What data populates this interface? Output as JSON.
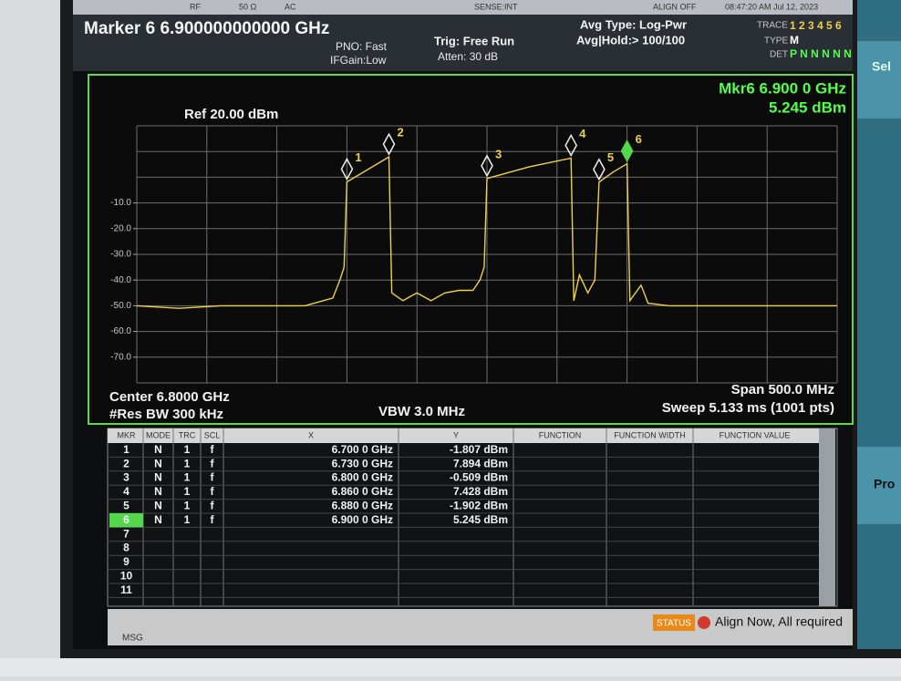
{
  "header": {
    "rf": "RF",
    "impedance": "50 Ω",
    "coupling": "AC",
    "sense": "SENSE:INT",
    "align": "ALIGN OFF",
    "datetime": "08:47:20 AM Jul 12, 2023",
    "marker": "Marker 6 6.900000000000 GHz",
    "pno": "PNO: Fast",
    "ifgain": "IFGain:Low",
    "trig": "Trig: Free Run",
    "atten": "Atten: 30 dB",
    "avg_type": "Avg Type: Log-Pwr",
    "avg_hold": "Avg|Hold:> 100/100",
    "trace_label": "TRACE",
    "trace": "1 2 3 4 5 6",
    "type_label": "TYPE",
    "type": "M",
    "det_label": "DET",
    "det": "P N N N N N"
  },
  "graph": {
    "ref": "Ref 20.00 dBm",
    "mkr_freq": "Mkr6 6.900 0 GHz",
    "mkr_level": "5.245 dBm",
    "center": "Center 6.8000 GHz",
    "rbw": "#Res BW 300 kHz",
    "vbw": "VBW 3.0 MHz",
    "span": "Span 500.0 MHz",
    "sweep": "Sweep  5.133 ms (1001 pts)",
    "xlim": [
      6.55,
      7.05
    ],
    "ylim": [
      -80,
      20
    ],
    "yticks": [
      {
        "value": -10,
        "label": "-10.0"
      },
      {
        "value": -20,
        "label": "-20.0"
      },
      {
        "value": -30,
        "label": "-30.0"
      },
      {
        "value": -40,
        "label": "-40.0"
      },
      {
        "value": -50,
        "label": "-50.0"
      },
      {
        "value": -60,
        "label": "-60.0"
      },
      {
        "value": -70,
        "label": "-70.0"
      }
    ],
    "trace_color": "#f0d04a",
    "trace_x": [
      6.55,
      6.58,
      6.61,
      6.64,
      6.67,
      6.69,
      6.695,
      6.698,
      6.7,
      6.715,
      6.73,
      6.732,
      6.74,
      6.75,
      6.76,
      6.77,
      6.78,
      6.79,
      6.795,
      6.798,
      6.8,
      6.83,
      6.86,
      6.862,
      6.866,
      6.872,
      6.877,
      6.88,
      6.89,
      6.9,
      6.902,
      6.91,
      6.915,
      6.93,
      6.96,
      6.99,
      7.02,
      7.05
    ],
    "trace_y": [
      -50,
      -51,
      -50,
      -50,
      -50,
      -47,
      -40,
      -35,
      -1.8,
      3,
      7.9,
      -45,
      -48,
      -45,
      -48,
      -45,
      -44,
      -44,
      -40,
      -35,
      -0.5,
      4,
      7.4,
      -48,
      -38,
      -45,
      -40,
      -1.9,
      2,
      5.2,
      -48,
      -42,
      -49,
      -50,
      -50,
      -50,
      -50,
      -50
    ],
    "markers": [
      {
        "label": "1",
        "x": 6.7,
        "y": -1.807
      },
      {
        "label": "2",
        "x": 6.73,
        "y": 7.894
      },
      {
        "label": "3",
        "x": 6.8,
        "y": -0.509
      },
      {
        "label": "4",
        "x": 6.86,
        "y": 7.428
      },
      {
        "label": "5",
        "x": 6.88,
        "y": -1.902
      },
      {
        "label": "6",
        "x": 6.9,
        "y": 5.245
      }
    ]
  },
  "table": {
    "columns": [
      "MKR",
      "MODE",
      "TRC",
      "SCL",
      "X",
      "Y",
      "FUNCTION",
      "FUNCTION WIDTH",
      "FUNCTION VALUE"
    ],
    "rows": [
      [
        "1",
        "N",
        "1",
        "f",
        "6.700 0 GHz",
        "-1.807 dBm"
      ],
      [
        "2",
        "N",
        "1",
        "f",
        "6.730 0 GHz",
        "7.894 dBm"
      ],
      [
        "3",
        "N",
        "1",
        "f",
        "6.800 0 GHz",
        "-0.509 dBm"
      ],
      [
        "4",
        "N",
        "1",
        "f",
        "6.860 0 GHz",
        "7.428 dBm"
      ],
      [
        "5",
        "N",
        "1",
        "f",
        "6.880 0 GHz",
        "-1.902 dBm"
      ],
      [
        "6",
        "N",
        "1",
        "f",
        "6.900 0 GHz",
        "5.245 dBm"
      ],
      [
        "7"
      ],
      [
        "8"
      ],
      [
        "9"
      ],
      [
        "10"
      ],
      [
        "11"
      ]
    ]
  },
  "status": {
    "msg": "MSG",
    "status": "STATUS",
    "message": "Align Now, All required"
  },
  "softkeys": [
    "Sel",
    "Pro"
  ]
}
